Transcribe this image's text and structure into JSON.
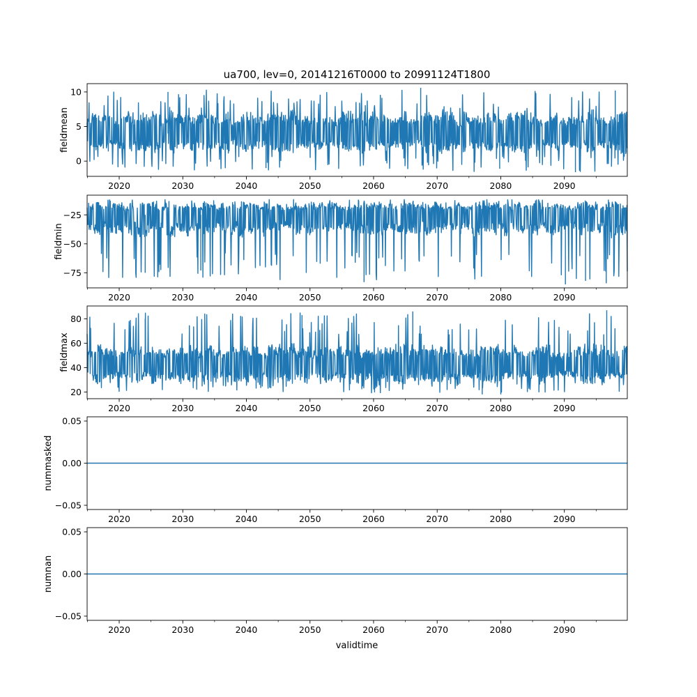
{
  "figure": {
    "title": "ua700, lev=0, 20141216T0000 to 20991124T1800",
    "xlabel": "validtime",
    "line_color": "#1f77b4"
  },
  "chart_data": [
    {
      "type": "line",
      "ylabel": "fieldmean",
      "x_range": [
        "2014-12-16T00:00",
        "2099-11-24T18:00"
      ],
      "xticks": [
        "2020",
        "2030",
        "2040",
        "2050",
        "2060",
        "2070",
        "2080",
        "2090"
      ],
      "yticks": [
        "0",
        "5",
        "10"
      ],
      "ylim": [
        -2.2,
        11.2
      ],
      "band": {
        "low": 1.0,
        "high": 7.5,
        "spike_min": -1.8,
        "spike_max": 10.6,
        "center": 4.0
      },
      "seed": 11,
      "spikes": [
        {
          "x": "2027-09",
          "y": 10.0
        },
        {
          "x": "2067-06",
          "y": 10.6
        },
        {
          "x": "2091-10",
          "y": -1.6
        },
        {
          "x": "2098-01",
          "y": 10.2
        },
        {
          "x": "2043-02",
          "y": -1.0
        },
        {
          "x": "2079-11",
          "y": -1.1
        }
      ]
    },
    {
      "type": "line",
      "ylabel": "fieldmin",
      "x_range": [
        "2014-12-16T00:00",
        "2099-11-24T18:00"
      ],
      "xticks": [
        "2020",
        "2030",
        "2040",
        "2050",
        "2060",
        "2070",
        "2080",
        "2090"
      ],
      "yticks": [
        "−75",
        "−50",
        "−25"
      ],
      "ylim": [
        -88,
        -8
      ],
      "band": {
        "low": -45,
        "high": -13,
        "spike_min": -84,
        "spike_max": -11,
        "center": -25
      },
      "seed": 23,
      "spikes": [
        {
          "x": "2058-07",
          "y": -83
        },
        {
          "x": "2090-03",
          "y": -85
        },
        {
          "x": "2096-08",
          "y": -84
        },
        {
          "x": "2093-05",
          "y": -82
        },
        {
          "x": "2024-02",
          "y": -75
        },
        {
          "x": "2032-11",
          "y": -73
        }
      ]
    },
    {
      "type": "line",
      "ylabel": "fieldmax",
      "x_range": [
        "2014-12-16T00:00",
        "2099-11-24T18:00"
      ],
      "xticks": [
        "2020",
        "2030",
        "2040",
        "2050",
        "2060",
        "2070",
        "2080",
        "2090"
      ],
      "yticks": [
        "20",
        "40",
        "60",
        "80"
      ],
      "ylim": [
        14.5,
        90.5
      ],
      "band": {
        "low": 26,
        "high": 60,
        "spike_min": 18,
        "spike_max": 87,
        "center": 42
      },
      "seed": 37,
      "spikes": [
        {
          "x": "2066-03",
          "y": 86
        },
        {
          "x": "2096-09",
          "y": 87
        },
        {
          "x": "2048-10",
          "y": 83
        },
        {
          "x": "2024-02",
          "y": 80
        },
        {
          "x": "2077-02",
          "y": 18
        },
        {
          "x": "2080-01",
          "y": 18
        }
      ]
    },
    {
      "type": "line",
      "ylabel": "nummasked",
      "x_range": [
        "2014-12-16T00:00",
        "2099-11-24T18:00"
      ],
      "xticks": [
        "2020",
        "2030",
        "2040",
        "2050",
        "2060",
        "2070",
        "2080",
        "2090"
      ],
      "yticks": [
        "−0.05",
        "0.00",
        "0.05"
      ],
      "ylim": [
        -0.055,
        0.055
      ],
      "constant": 0.0
    },
    {
      "type": "line",
      "ylabel": "numnan",
      "x_range": [
        "2014-12-16T00:00",
        "2099-11-24T18:00"
      ],
      "xticks": [
        "2020",
        "2030",
        "2040",
        "2050",
        "2060",
        "2070",
        "2080",
        "2090"
      ],
      "yticks": [
        "−0.05",
        "0.00",
        "0.05"
      ],
      "ylim": [
        -0.055,
        0.055
      ],
      "constant": 0.0
    }
  ]
}
